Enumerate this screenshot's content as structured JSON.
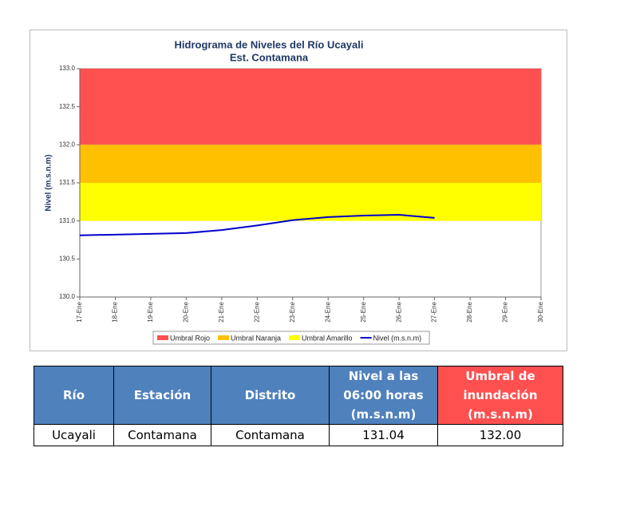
{
  "chart_data": {
    "type": "line",
    "title": "Hidrograma de Niveles del Río Ucayali",
    "subtitle": "Est. Contamana",
    "y_label": "Nivel (m.s.n.m)",
    "categories": [
      "17-Ene",
      "18-Ene",
      "19-Ene",
      "20-Ene",
      "21-Ene",
      "22-Ene",
      "23-Ene",
      "24-Ene",
      "25-Ene",
      "26-Ene",
      "27-Ene",
      "28-Ene",
      "29-Ene",
      "30-Ene"
    ],
    "bands": [
      {
        "name": "Umbral Rojo",
        "color": "#ff5050",
        "from": 132,
        "to": 133
      },
      {
        "name": "Umbral Naranja",
        "color": "#ffc000",
        "from": 131.5,
        "to": 132
      },
      {
        "name": "Umbral Amarillo",
        "color": "#ffff00",
        "from": 131,
        "to": 131.5
      }
    ],
    "series": [
      {
        "name": "Nivel (m.s.n.m)",
        "color": "#0000cc",
        "values": [
          130.81,
          130.82,
          130.83,
          130.84,
          130.88,
          130.94,
          131.01,
          131.05,
          131.07,
          131.08,
          131.04,
          null,
          null,
          null
        ]
      }
    ],
    "ylim": [
      130,
      133
    ],
    "yticks": [
      {
        "value": 130,
        "label": "130.0"
      },
      130.5,
      {
        "value": 131,
        "label": "131.0"
      },
      131.5,
      {
        "value": 132,
        "label": "132.0"
      },
      132.5,
      {
        "value": 133,
        "label": "133.0"
      }
    ]
  },
  "table": {
    "headers": [
      "Río",
      "Estación",
      "Distrito",
      "Nivel a las 06:00 horas (m.s.n.m)",
      "Umbral de inundación (m.s.n.m)"
    ],
    "rows": [
      [
        "Ucayali",
        "Contamana",
        "Contamana",
        "131.04",
        "132.00"
      ]
    ]
  }
}
